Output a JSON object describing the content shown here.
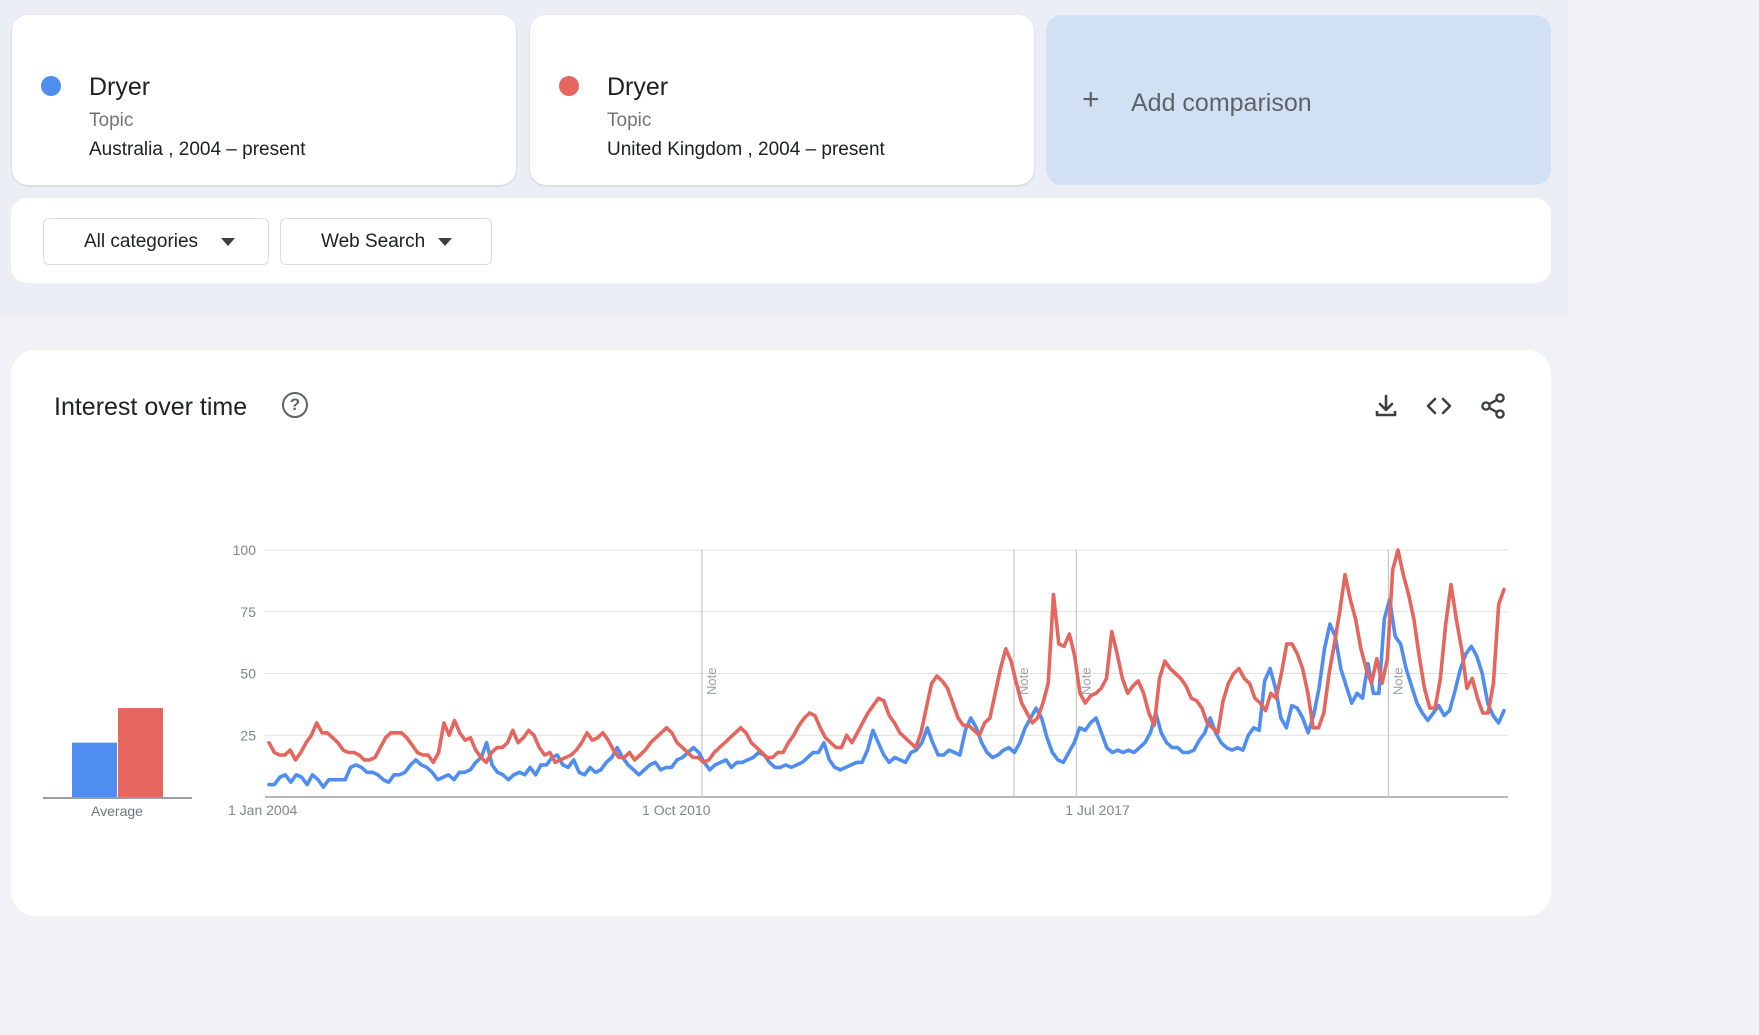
{
  "comparison": {
    "terms": [
      {
        "name": "Dryer",
        "type": "Topic",
        "scope": "Australia , 2004 – present",
        "color": "#4f8ef0"
      },
      {
        "name": "Dryer",
        "type": "Topic",
        "scope": "United Kingdom , 2004 – present",
        "color": "#e4665e"
      }
    ],
    "add_label": "Add comparison",
    "add_icon": "plus-icon"
  },
  "filters": {
    "category": "All categories",
    "search_type": "Web Search"
  },
  "chart_panel": {
    "title": "Interest over time",
    "help_icon": "help-icon",
    "help_glyph": "?",
    "tools": [
      "download-icon",
      "embed-icon",
      "share-icon"
    ]
  },
  "chart_data": {
    "type": "line",
    "ylim": [
      0,
      100
    ],
    "y_ticks": [
      "100",
      "75",
      "50",
      "25"
    ],
    "x_ticks": [
      "1 Jan 2004",
      "1 Oct 2010",
      "1 Jul 2017"
    ],
    "notes": [
      {
        "date": "2011-01",
        "label": "Note"
      },
      {
        "date": "2016-01",
        "label": "Note"
      },
      {
        "date": "2017-01",
        "label": "Note"
      },
      {
        "date": "2022-01",
        "label": "Note"
      }
    ],
    "x_start": "2004-01",
    "x_end": "2023-12",
    "average": {
      "label": "Average",
      "values": [
        22,
        36
      ]
    },
    "series": [
      {
        "color": "#4f8ef0",
        "values": [
          5,
          5,
          8,
          9,
          6,
          9,
          8,
          5,
          9,
          7,
          4,
          7,
          7,
          7,
          7,
          12,
          13,
          12,
          10,
          10,
          9,
          7,
          6,
          9,
          9,
          10,
          13,
          15,
          13,
          12,
          10,
          7,
          8,
          9,
          7,
          10,
          10,
          11,
          14,
          16,
          22,
          13,
          10,
          9,
          7,
          9,
          10,
          9,
          12,
          9,
          13,
          13,
          16,
          17,
          13,
          12,
          15,
          10,
          9,
          12,
          10,
          11,
          14,
          16,
          20,
          16,
          13,
          11,
          9,
          11,
          13,
          14,
          11,
          12,
          12,
          15,
          16,
          18,
          20,
          18,
          14,
          11,
          13,
          14,
          15,
          12,
          14,
          14,
          15,
          16,
          18,
          17,
          14,
          12,
          12,
          13,
          12,
          13,
          14,
          16,
          18,
          18,
          22,
          15,
          12,
          11,
          12,
          13,
          14,
          14,
          19,
          27,
          22,
          17,
          14,
          16,
          15,
          14,
          18,
          19,
          22,
          28,
          22,
          17,
          17,
          19,
          18,
          17,
          27,
          32,
          28,
          22,
          18,
          16,
          17,
          19,
          20,
          18,
          22,
          28,
          32,
          36,
          32,
          24,
          18,
          15,
          14,
          18,
          22,
          28,
          27,
          30,
          32,
          26,
          20,
          18,
          19,
          18,
          19,
          18,
          20,
          22,
          26,
          34,
          26,
          22,
          20,
          20,
          18,
          18,
          19,
          23,
          26,
          32,
          26,
          22,
          20,
          19,
          20,
          19,
          25,
          28,
          27,
          47,
          52,
          44,
          32,
          28,
          37,
          36,
          32,
          26,
          33,
          44,
          60,
          70,
          65,
          52,
          45,
          38,
          42,
          40,
          54,
          42,
          42,
          72,
          80,
          65,
          62,
          52,
          45,
          38,
          34,
          31,
          34,
          37,
          33,
          35,
          43,
          52,
          58,
          61,
          57,
          50,
          38,
          33,
          30,
          35
        ]
      },
      {
        "color": "#e4665e",
        "values": [
          22,
          18,
          17,
          17,
          19,
          15,
          18,
          22,
          25,
          30,
          26,
          26,
          24,
          22,
          19,
          18,
          18,
          17,
          15,
          15,
          16,
          20,
          24,
          26,
          26,
          26,
          24,
          21,
          18,
          17,
          17,
          14,
          18,
          30,
          25,
          31,
          26,
          23,
          24,
          19,
          16,
          14,
          18,
          20,
          20,
          22,
          27,
          22,
          24,
          27,
          25,
          20,
          17,
          18,
          14,
          15,
          16,
          17,
          19,
          22,
          26,
          23,
          24,
          26,
          23,
          19,
          16,
          16,
          18,
          15,
          17,
          19,
          22,
          24,
          26,
          28,
          26,
          22,
          20,
          18,
          16,
          16,
          14,
          15,
          18,
          20,
          22,
          24,
          26,
          28,
          26,
          22,
          20,
          18,
          16,
          16,
          18,
          18,
          22,
          25,
          29,
          32,
          34,
          33,
          28,
          24,
          22,
          20,
          20,
          25,
          22,
          26,
          30,
          34,
          37,
          40,
          39,
          33,
          30,
          26,
          24,
          22,
          20,
          26,
          36,
          46,
          49,
          47,
          44,
          38,
          32,
          29,
          29,
          27,
          25,
          30,
          32,
          42,
          52,
          60,
          55,
          46,
          38,
          34,
          30,
          32,
          38,
          46,
          82,
          62,
          61,
          66,
          57,
          42,
          38,
          41,
          42,
          44,
          48,
          67,
          58,
          48,
          42,
          45,
          47,
          42,
          34,
          29,
          48,
          55,
          52,
          50,
          48,
          45,
          40,
          39,
          36,
          30,
          28,
          26,
          39,
          46,
          50,
          52,
          48,
          46,
          40,
          38,
          35,
          42,
          40,
          50,
          62,
          62,
          58,
          52,
          42,
          28,
          28,
          34,
          50,
          62,
          75,
          90,
          80,
          72,
          60,
          52,
          46,
          56,
          46,
          56,
          92,
          100,
          90,
          82,
          72,
          57,
          44,
          36,
          36,
          48,
          70,
          86,
          72,
          60,
          44,
          48,
          40,
          34,
          34,
          46,
          78,
          84
        ]
      }
    ]
  }
}
